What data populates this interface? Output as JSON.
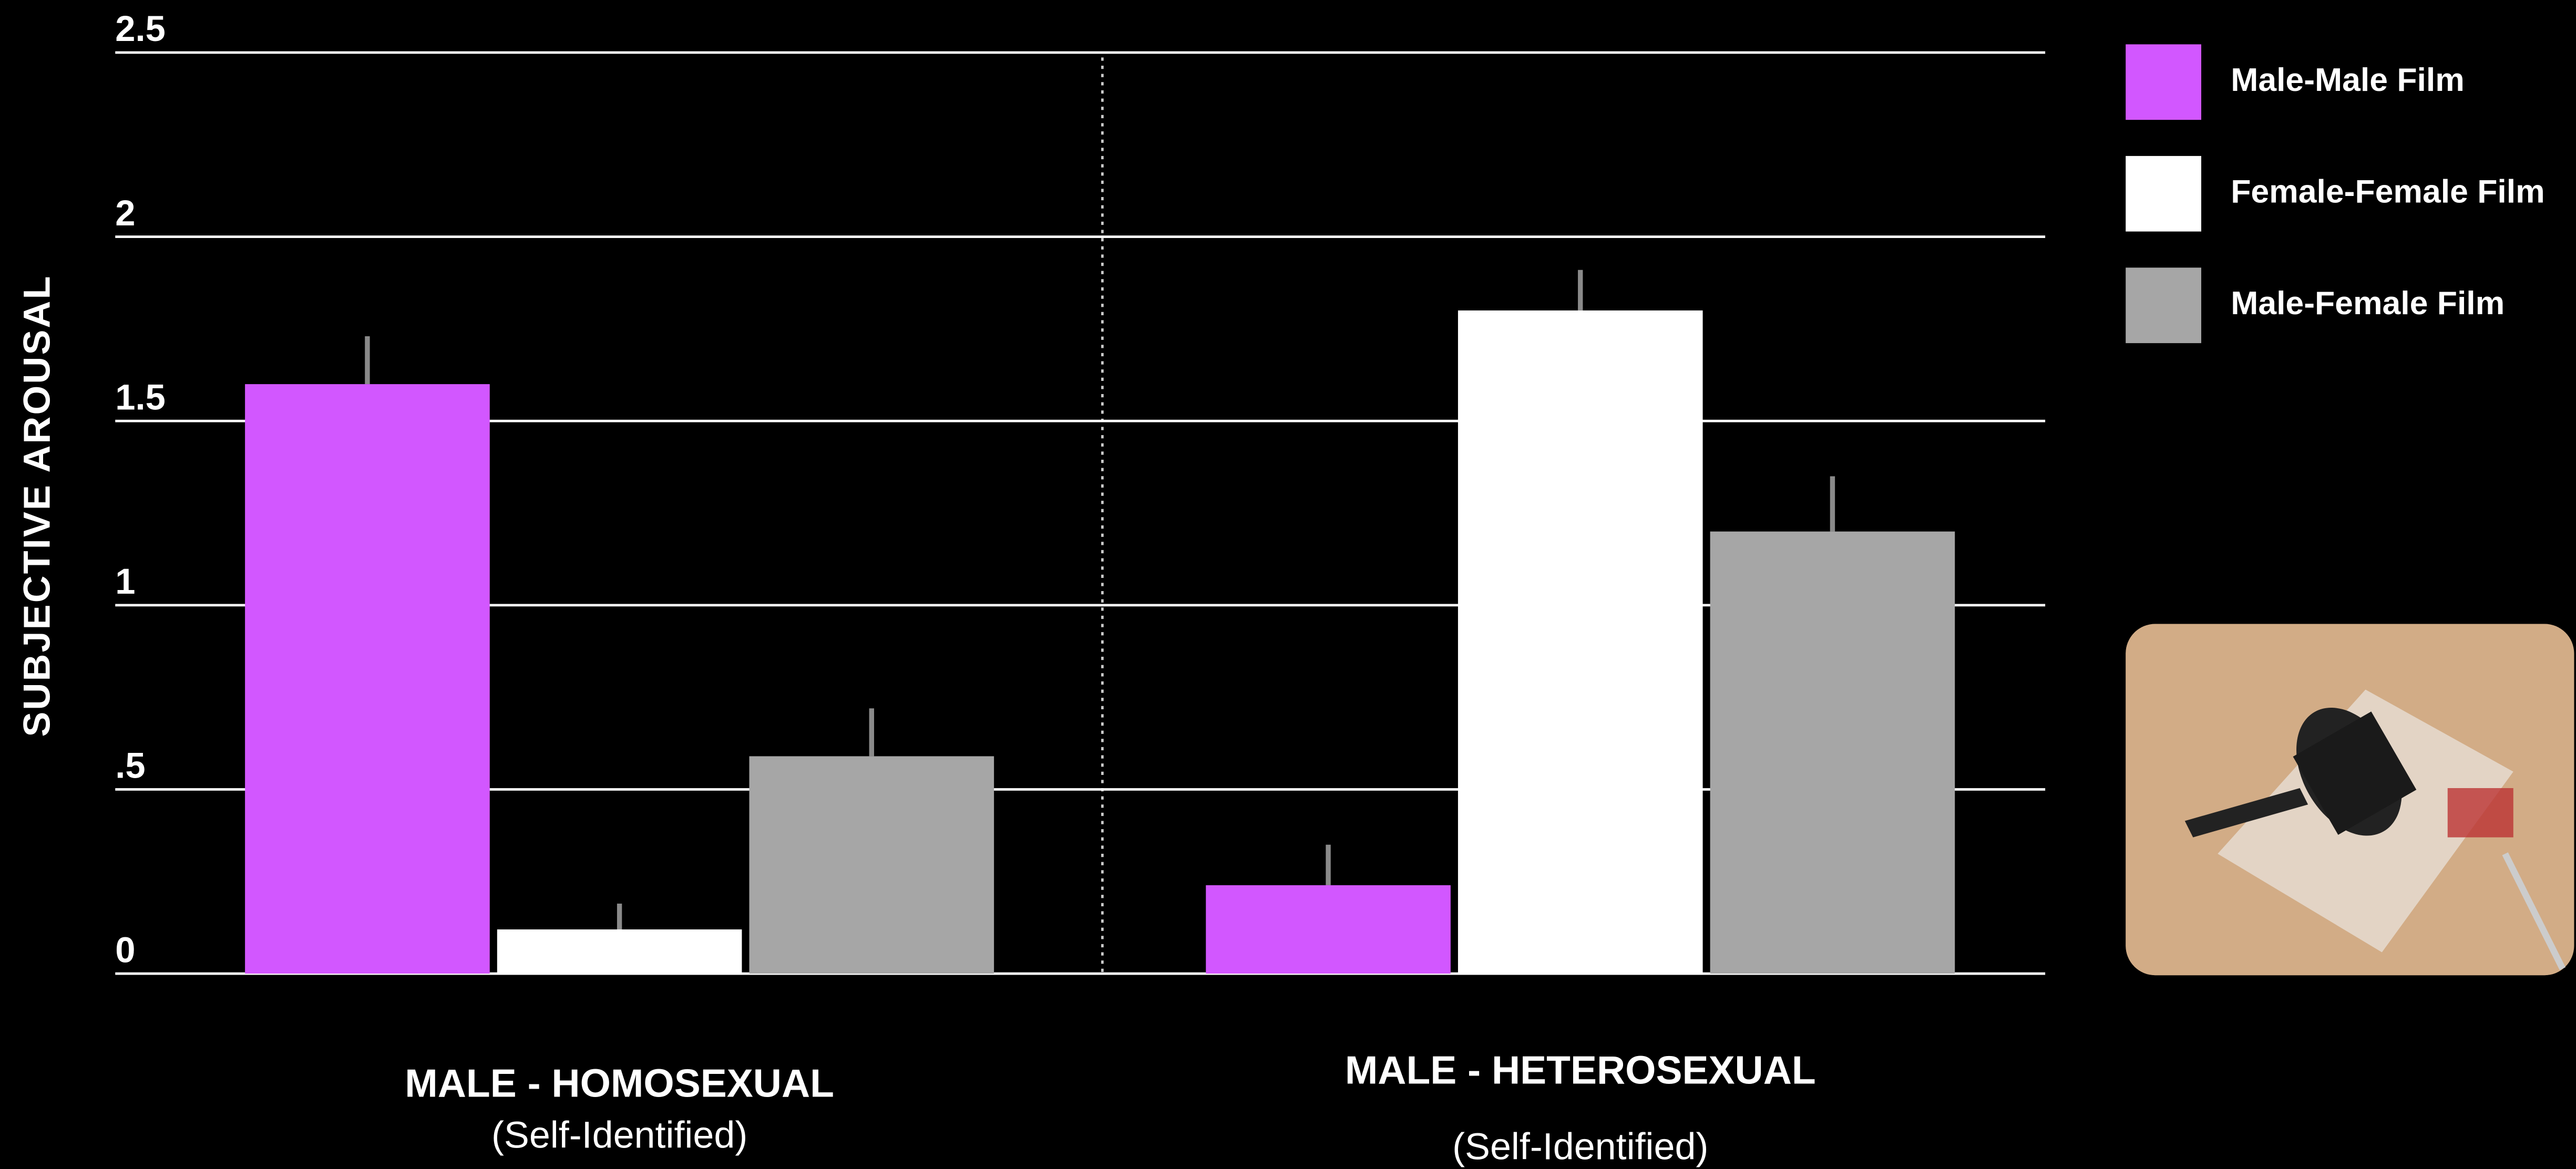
{
  "chart_data": {
    "type": "bar",
    "y_label": "SUBJECTIVE AROUSAL",
    "categories": [
      "MALE - HOMOSEXUAL",
      "MALE - HETEROSEXUAL"
    ],
    "category_sublabels": [
      "(Self-Identified)",
      "(Self-Identified)"
    ],
    "series": [
      {
        "name": "Male-Male Film",
        "color": "#d257ff",
        "values": [
          1.6,
          0.24
        ],
        "errors": [
          0.13,
          0.11
        ]
      },
      {
        "name": "Female-Female Film",
        "color": "#ffffff",
        "values": [
          0.12,
          1.8
        ],
        "errors": [
          0.07,
          0.11
        ]
      },
      {
        "name": "Male-Female Film",
        "color": "#a6a6a6",
        "values": [
          0.59,
          1.2
        ],
        "errors": [
          0.13,
          0.15
        ]
      }
    ],
    "ylim": [
      0,
      2.5
    ],
    "yticks": [
      0,
      {
        "value": 0.5,
        "label": ".5"
      },
      1,
      1.5,
      2,
      2.5
    ],
    "grid": true
  }
}
